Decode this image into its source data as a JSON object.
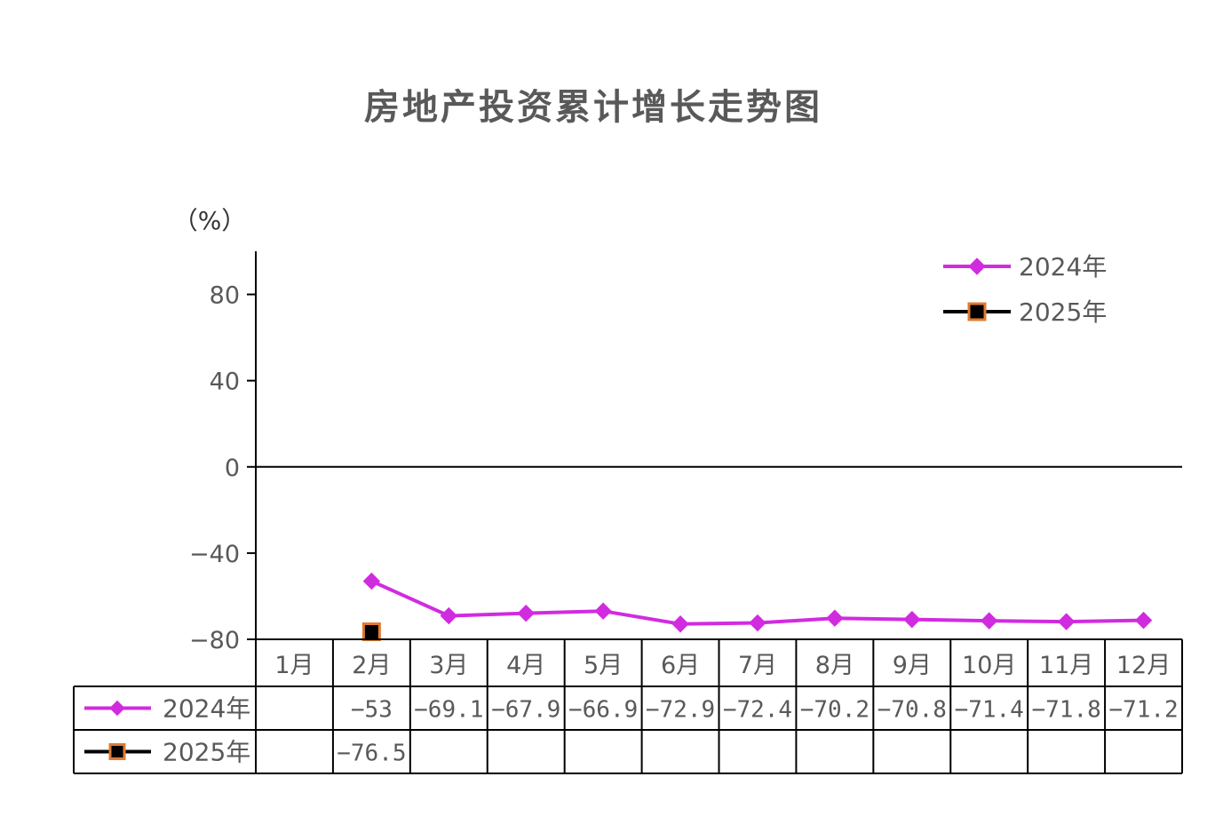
{
  "chart_data": {
    "type": "line",
    "title": "房地产投资累计增长走势图",
    "ylabel": "（%）",
    "ylim": [
      -80,
      100
    ],
    "yticks": [
      80,
      40,
      0,
      -40,
      -80
    ],
    "ytick_labels": [
      "80",
      "40",
      "0",
      "−40",
      "−80"
    ],
    "categories": [
      "1月",
      "2月",
      "3月",
      "4月",
      "5月",
      "6月",
      "7月",
      "8月",
      "9月",
      "10月",
      "11月",
      "12月"
    ],
    "series": [
      {
        "name": "2024年",
        "color": "#d12be0",
        "marker": "diamond",
        "values": [
          null,
          -53,
          -69.1,
          -67.9,
          -66.9,
          -72.9,
          -72.4,
          -70.2,
          -70.8,
          -71.4,
          -71.8,
          -71.2
        ],
        "labels": [
          "",
          "−53",
          "−69.1",
          "−67.9",
          "−66.9",
          "−72.9",
          "−72.4",
          "−70.2",
          "−70.8",
          "−71.4",
          "−71.8",
          "−71.2"
        ]
      },
      {
        "name": "2025年",
        "color": "#000000",
        "marker_edge": "#e07a30",
        "marker": "square",
        "values": [
          null,
          -76.5,
          null,
          null,
          null,
          null,
          null,
          null,
          null,
          null,
          null,
          null
        ],
        "labels": [
          "",
          "−76.5",
          "",
          "",
          "",
          "",
          "",
          "",
          "",
          "",
          "",
          ""
        ]
      }
    ],
    "legend_position": "top-right",
    "data_table": true
  }
}
